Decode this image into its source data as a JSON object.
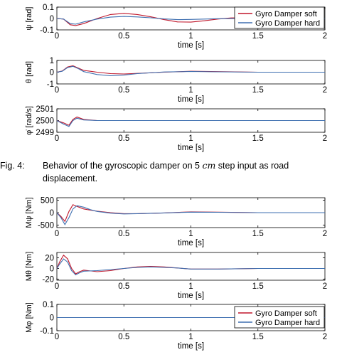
{
  "caption": {
    "label": "Fig. 4:",
    "text_before": "Behavior of the gyroscopic damper on ",
    "value": "5",
    "unit": "cm",
    "text_after": " step input as road displacement."
  },
  "legend_entries": [
    "Gyro Damper soft",
    "Gyro Damper hard"
  ],
  "chart_data": [
    {
      "type": "line",
      "ylabel": "ψ [rad]",
      "xlabel": "time [s]",
      "xlim": [
        0,
        2
      ],
      "ylim": [
        -0.1,
        0.1
      ],
      "xticks": [
        "0",
        "0.5",
        "1",
        "1.5",
        "2"
      ],
      "yticks": [
        "0.1",
        "0",
        "-0.1"
      ],
      "legend": "top-right",
      "series": [
        {
          "name": "Gyro Damper soft",
          "color": "#c0172b",
          "x": [
            0,
            0.05,
            0.1,
            0.14,
            0.2,
            0.3,
            0.4,
            0.5,
            0.6,
            0.7,
            0.8,
            0.9,
            1.0,
            1.1,
            1.2,
            1.3,
            1.5,
            1.7,
            2.0
          ],
          "y": [
            0,
            -0.005,
            -0.055,
            -0.062,
            -0.045,
            0.0,
            0.035,
            0.045,
            0.035,
            0.015,
            -0.01,
            -0.03,
            -0.032,
            -0.02,
            -0.005,
            0.005,
            0.008,
            0.002,
            0.0
          ]
        },
        {
          "name": "Gyro Damper hard",
          "color": "#3e6fb0",
          "x": [
            0,
            0.05,
            0.1,
            0.14,
            0.2,
            0.3,
            0.4,
            0.5,
            0.6,
            0.7,
            0.8,
            0.9,
            1.0,
            1.2,
            1.5,
            1.8,
            2.0
          ],
          "y": [
            0,
            -0.005,
            -0.045,
            -0.05,
            -0.03,
            -0.005,
            0.012,
            0.018,
            0.014,
            0.006,
            -0.004,
            -0.01,
            -0.008,
            -0.002,
            0.001,
            0.0,
            0.0
          ]
        }
      ]
    },
    {
      "type": "line",
      "ylabel": "θ [rad]",
      "xlabel": "time [s]",
      "xlim": [
        0,
        2
      ],
      "ylim": [
        -1,
        1
      ],
      "xticks": [
        "0",
        "0.5",
        "1",
        "1.5",
        "2"
      ],
      "yticks": [
        "1",
        "0",
        "-1"
      ],
      "series": [
        {
          "name": "Gyro Damper soft",
          "color": "#c0172b",
          "x": [
            0,
            0.04,
            0.08,
            0.12,
            0.16,
            0.2,
            0.3,
            0.4,
            0.5,
            0.6,
            0.8,
            1.0,
            1.2,
            1.5,
            2.0
          ],
          "y": [
            0,
            0.1,
            0.45,
            0.55,
            0.35,
            0.15,
            0.0,
            -0.12,
            -0.15,
            -0.1,
            0.0,
            0.08,
            0.05,
            0.0,
            0.0
          ]
        },
        {
          "name": "Gyro Damper hard",
          "color": "#3e6fb0",
          "x": [
            0,
            0.04,
            0.08,
            0.12,
            0.16,
            0.2,
            0.3,
            0.4,
            0.5,
            0.6,
            0.8,
            1.0,
            1.2,
            1.5,
            2.0
          ],
          "y": [
            0,
            0.08,
            0.4,
            0.5,
            0.3,
            0.05,
            -0.2,
            -0.3,
            -0.25,
            -0.12,
            0.02,
            0.06,
            0.03,
            0.0,
            0.0
          ]
        }
      ]
    },
    {
      "type": "line",
      "ylabel": "φ̇ [rad/s]",
      "xlabel": "time [s]",
      "xlim": [
        0,
        2
      ],
      "ylim": [
        2499,
        2501
      ],
      "xticks": [
        "0",
        "0.5",
        "1",
        "1.5",
        "2"
      ],
      "yticks": [
        "2501",
        "2500",
        "2499"
      ],
      "series": [
        {
          "name": "Gyro Damper soft",
          "color": "#c0172b",
          "x": [
            0,
            0.05,
            0.09,
            0.12,
            0.15,
            0.2,
            0.3,
            0.5,
            1.0,
            2.0
          ],
          "y": [
            2500,
            2499.8,
            2499.6,
            2500.1,
            2500.3,
            2500.1,
            2500.0,
            2500.0,
            2500.0,
            2500.0
          ]
        },
        {
          "name": "Gyro Damper hard",
          "color": "#3e6fb0",
          "x": [
            0,
            0.05,
            0.09,
            0.12,
            0.15,
            0.2,
            0.3,
            0.5,
            1.0,
            2.0
          ],
          "y": [
            2500,
            2499.7,
            2499.5,
            2500.0,
            2500.2,
            2500.05,
            2500.0,
            2500.0,
            2500.0,
            2500.0
          ]
        }
      ]
    },
    {
      "type": "line",
      "ylabel": "Mψ [Nm]",
      "xlabel": "time [s]",
      "xlim": [
        0,
        2
      ],
      "ylim": [
        -600,
        600
      ],
      "xticks": [
        "0",
        "0.5",
        "1",
        "1.5",
        "2"
      ],
      "yticks": [
        "500",
        "0",
        "-500"
      ],
      "series": [
        {
          "name": "Gyro Damper soft",
          "color": "#c0172b",
          "x": [
            0,
            0.03,
            0.06,
            0.09,
            0.12,
            0.15,
            0.2,
            0.25,
            0.3,
            0.4,
            0.5,
            0.6,
            0.8,
            1.0,
            1.2,
            1.5,
            2.0
          ],
          "y": [
            0,
            -150,
            -350,
            50,
            320,
            250,
            150,
            100,
            60,
            0,
            -40,
            -40,
            -10,
            30,
            20,
            0,
            0
          ]
        },
        {
          "name": "Gyro Damper hard",
          "color": "#3e6fb0",
          "x": [
            0,
            0.03,
            0.06,
            0.09,
            0.12,
            0.15,
            0.2,
            0.25,
            0.3,
            0.4,
            0.5,
            0.6,
            0.8,
            1.0,
            1.2,
            1.5,
            2.0
          ],
          "y": [
            0,
            -200,
            -480,
            -200,
            150,
            280,
            220,
            120,
            50,
            -20,
            -50,
            -40,
            -10,
            20,
            15,
            0,
            0
          ]
        }
      ]
    },
    {
      "type": "line",
      "ylabel": "Mθ [Nm]",
      "xlabel": "time [s]",
      "xlim": [
        0,
        2
      ],
      "ylim": [
        -22,
        30
      ],
      "xticks": [
        "0",
        "0.5",
        "1",
        "1.5",
        "2"
      ],
      "yticks": [
        "20",
        "0",
        "-20"
      ],
      "series": [
        {
          "name": "Gyro Damper soft",
          "color": "#c0172b",
          "x": [
            0,
            0.02,
            0.05,
            0.08,
            0.11,
            0.14,
            0.17,
            0.2,
            0.3,
            0.4,
            0.5,
            0.6,
            0.7,
            0.8,
            0.9,
            1.0,
            1.2,
            1.5,
            2.0
          ],
          "y": [
            0,
            12,
            25,
            18,
            0,
            -10,
            -6,
            -3,
            -6,
            -4,
            0,
            3,
            4,
            3,
            1,
            -1,
            -1,
            0,
            0
          ]
        },
        {
          "name": "Gyro Damper hard",
          "color": "#3e6fb0",
          "x": [
            0,
            0.02,
            0.05,
            0.08,
            0.11,
            0.14,
            0.17,
            0.2,
            0.3,
            0.4,
            0.5,
            0.6,
            0.7,
            0.8,
            0.9,
            1.0,
            1.2,
            1.5,
            2.0
          ],
          "y": [
            0,
            8,
            18,
            12,
            -4,
            -12,
            -8,
            -5,
            -4,
            -2,
            0,
            2,
            3,
            2,
            1,
            -1,
            -1,
            0,
            0
          ]
        }
      ]
    },
    {
      "type": "line",
      "ylabel": "Mφ [Nm]",
      "xlabel": "time [s]",
      "xlim": [
        0,
        2
      ],
      "ylim": [
        -0.1,
        0.1
      ],
      "xticks": [
        "0",
        "0.5",
        "1",
        "1.5",
        "2"
      ],
      "yticks": [
        "0.1",
        "0",
        "-0.1"
      ],
      "legend": "bottom-right",
      "series": [
        {
          "name": "Gyro Damper soft",
          "color": "#c0172b",
          "x": [
            0,
            2
          ],
          "y": [
            0,
            0
          ]
        },
        {
          "name": "Gyro Damper hard",
          "color": "#3e6fb0",
          "x": [
            0,
            2
          ],
          "y": [
            0,
            0
          ]
        }
      ]
    }
  ]
}
